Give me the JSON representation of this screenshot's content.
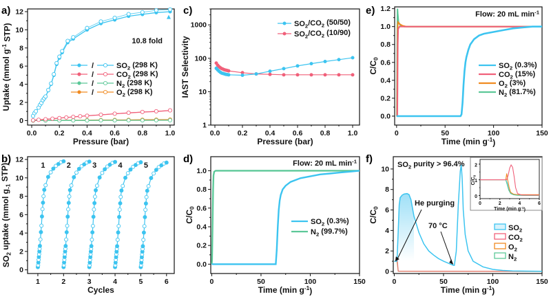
{
  "colors": {
    "so2": "#3cc4f0",
    "co2": "#f0607a",
    "n2": "#5cc898",
    "o2": "#f08a20",
    "axis": "#111111"
  },
  "chart_data": [
    {
      "id": "a",
      "type": "line",
      "panel_label": "a)",
      "xlabel": "Pressure (bar)",
      "ylabel": "Uptake (mmol g-1 STP)",
      "ylabel_parts": [
        "Uptake (mmol g",
        "-1",
        " STP)"
      ],
      "xlim": [
        -0.03,
        1.03
      ],
      "ylim": [
        -0.5,
        12.3
      ],
      "xticks": [
        "0.0",
        "0.2",
        "0.4",
        "0.6",
        "0.8",
        "1.0"
      ],
      "xtick_values": [
        0.0,
        0.2,
        0.4,
        0.6,
        0.8,
        1.0
      ],
      "yticks": [
        "0",
        "2",
        "4",
        "6",
        "8",
        "10",
        "12"
      ],
      "ytick_values": [
        0,
        2,
        4,
        6,
        8,
        10,
        12
      ],
      "annotation": "10.8 fold",
      "legend_position": "center-right",
      "series": [
        {
          "name": "SO2 (298 K)",
          "legend": [
            "SO",
            "2",
            " (298 K)"
          ],
          "color_key": "so2",
          "x": [
            0.01,
            0.02,
            0.03,
            0.05,
            0.06,
            0.07,
            0.08,
            0.09,
            0.1,
            0.12,
            0.14,
            0.16,
            0.18,
            0.2,
            0.22,
            0.26,
            0.3,
            0.4,
            0.5,
            0.6,
            0.7,
            0.8,
            0.9,
            1.0
          ],
          "y": [
            0.5,
            0.8,
            1.0,
            1.4,
            1.7,
            1.9,
            2.2,
            2.4,
            2.6,
            3.3,
            4.0,
            5.0,
            6.2,
            6.9,
            7.5,
            8.6,
            9.0,
            10.0,
            10.7,
            11.1,
            11.5,
            11.7,
            11.9,
            12.0
          ]
        },
        {
          "name": "CO2 (298 K)",
          "legend": [
            "CO",
            "2",
            " (298 K)"
          ],
          "color_key": "co2",
          "x": [
            0.01,
            0.05,
            0.1,
            0.15,
            0.2,
            0.25,
            0.3,
            0.35,
            0.4,
            0.5,
            0.6,
            0.7,
            0.8,
            0.9,
            1.0
          ],
          "y": [
            0.03,
            0.08,
            0.14,
            0.2,
            0.27,
            0.33,
            0.4,
            0.46,
            0.52,
            0.63,
            0.74,
            0.84,
            0.93,
            1.0,
            1.1
          ]
        },
        {
          "name": "N2 (298 K)",
          "legend": [
            "N",
            "2",
            " (298 K)"
          ],
          "color_key": "n2",
          "x": [
            0.01,
            0.1,
            0.2,
            0.3,
            0.4,
            0.5,
            0.6,
            0.7,
            0.8,
            0.9,
            1.0
          ],
          "y": [
            0.0,
            0.0,
            0.01,
            0.01,
            0.01,
            0.02,
            0.02,
            0.02,
            0.02,
            0.03,
            0.03
          ]
        },
        {
          "name": "O2 (298 K)",
          "legend": [
            "O",
            "2",
            " (298 K)"
          ],
          "color_key": "o2",
          "x": [
            0.01,
            0.1,
            0.2,
            0.3,
            0.4,
            0.5,
            0.6,
            0.7,
            0.8,
            0.9,
            1.0
          ],
          "y": [
            0.0,
            0.01,
            0.02,
            0.03,
            0.04,
            0.05,
            0.06,
            0.07,
            0.08,
            0.09,
            0.1
          ]
        }
      ]
    },
    {
      "id": "c",
      "type": "line",
      "panel_label": "c)",
      "xlabel": "Pressure (bar)",
      "ylabel": "IAST Selectivity",
      "yscale": "log",
      "xlim": [
        -0.03,
        1.05
      ],
      "ylim": [
        1,
        3000
      ],
      "xticks": [
        "0.0",
        "0.2",
        "0.4",
        "0.6",
        "0.8",
        "1.0"
      ],
      "xtick_values": [
        0.0,
        0.2,
        0.4,
        0.6,
        0.8,
        1.0
      ],
      "yticks": [
        "1",
        "10",
        "100",
        "1000"
      ],
      "ytick_values": [
        1,
        10,
        100,
        1000
      ],
      "legend_position": "top-right",
      "series": [
        {
          "name": "SO2/CO2 (50/50)",
          "legend": [
            "SO",
            "2",
            "/CO",
            "2",
            " (50/50)"
          ],
          "color_key": "so2",
          "x": [
            0.01,
            0.02,
            0.03,
            0.04,
            0.05,
            0.06,
            0.07,
            0.08,
            0.09,
            0.1,
            0.2,
            0.3,
            0.4,
            0.5,
            0.6,
            0.7,
            0.8,
            0.9,
            1.0
          ],
          "y": [
            50,
            45,
            41,
            38,
            36,
            35,
            34,
            33,
            32.5,
            32,
            31,
            34,
            41,
            49,
            59,
            69,
            80,
            91,
            104
          ]
        },
        {
          "name": "SO2/CO2 (10/90)",
          "legend": [
            "SO",
            "2",
            "/CO",
            "2",
            " (10/90)"
          ],
          "color_key": "co2",
          "x": [
            0.01,
            0.02,
            0.03,
            0.04,
            0.05,
            0.06,
            0.07,
            0.08,
            0.09,
            0.1,
            0.2,
            0.3,
            0.4,
            0.5,
            0.6,
            0.7,
            0.8,
            0.9,
            1.0
          ],
          "y": [
            72,
            62,
            56,
            52,
            49,
            47,
            45,
            44,
            43,
            42,
            37,
            34,
            33,
            32,
            32,
            32,
            32,
            32,
            32
          ]
        }
      ]
    },
    {
      "id": "e",
      "type": "line",
      "panel_label": "e)",
      "xlabel": "Time (min g-1)",
      "ylabel": "C/C0",
      "xlim": [
        -2,
        150
      ],
      "ylim": [
        -0.1,
        1.22
      ],
      "xticks": [
        "0",
        "50",
        "100",
        "150"
      ],
      "xtick_values": [
        0,
        50,
        100,
        150
      ],
      "yticks": [
        "0.0",
        "0.2",
        "0.4",
        "0.6",
        "0.8",
        "1.0",
        "1.2"
      ],
      "ytick_values": [
        0.0,
        0.2,
        0.4,
        0.6,
        0.8,
        1.0,
        1.2
      ],
      "annotation": "Flow: 20 mL min-1",
      "legend_position": "center-right",
      "series": [
        {
          "name": "SO2 (0.3%)",
          "legend": [
            "SO",
            "2",
            " (0.3%)"
          ],
          "color_key": "so2",
          "x": [
            0,
            66,
            67,
            68,
            69,
            70,
            71,
            72,
            74,
            76,
            80,
            85,
            90,
            100,
            110,
            120,
            130,
            140,
            150
          ],
          "y": [
            0,
            0,
            0.02,
            0.15,
            0.35,
            0.5,
            0.6,
            0.66,
            0.74,
            0.8,
            0.86,
            0.9,
            0.92,
            0.94,
            0.96,
            0.98,
            0.99,
            1.0,
            1.0
          ]
        },
        {
          "name": "CO2 (15%)",
          "legend": [
            "CO",
            "2",
            " (15%)"
          ],
          "color_key": "co2",
          "x": [
            0,
            0.8,
            1.0,
            1.3,
            1.6,
            2,
            3,
            5,
            150
          ],
          "y": [
            0,
            0,
            0.3,
            0.8,
            0.97,
            0.98,
            1.0,
            1.0,
            1.0
          ]
        },
        {
          "name": "O2 (3%)",
          "legend": [
            "O",
            "2",
            " (3%)"
          ],
          "color_key": "o2",
          "x": [
            0,
            0.5,
            0.8,
            1.1,
            1.5,
            3,
            6,
            10,
            150
          ],
          "y": [
            0,
            0,
            0.5,
            1.0,
            1.05,
            1.03,
            1.01,
            1.0,
            1.0
          ]
        },
        {
          "name": "N2 (81.7%)",
          "legend": [
            "N",
            "2",
            " (81.7%)"
          ],
          "color_key": "n2",
          "x": [
            0,
            0.3,
            0.6,
            0.9,
            1.2,
            2,
            4,
            8,
            150
          ],
          "y": [
            0,
            0,
            0.8,
            1.2,
            1.15,
            1.05,
            1.01,
            1.0,
            1.0
          ]
        }
      ]
    },
    {
      "id": "b",
      "type": "scatter",
      "panel_label": "b)",
      "xlabel": "Cycles",
      "ylabel": "SO2 uptake (mmol g-1 STP)",
      "xlim": [
        0.6,
        6.3
      ],
      "ylim": [
        -0.4,
        12.3
      ],
      "xticks": [
        "1",
        "2",
        "3",
        "4",
        "5",
        "6"
      ],
      "xtick_values": [
        1,
        2,
        3,
        4,
        5,
        6
      ],
      "yticks": [
        "0",
        "2",
        "4",
        "6",
        "8",
        "10",
        "12"
      ],
      "ytick_values": [
        0,
        2,
        4,
        6,
        8,
        10,
        12
      ],
      "cycle_labels": [
        "1",
        "2",
        "3",
        "4",
        "5"
      ],
      "color_key": "so2",
      "cycle_relative_pressure": [
        0.0,
        0.01,
        0.02,
        0.03,
        0.04,
        0.05,
        0.06,
        0.07,
        0.08,
        0.1,
        0.12,
        0.14,
        0.16,
        0.18,
        0.2,
        0.22,
        0.25,
        0.3,
        0.4,
        0.5,
        0.6,
        0.7,
        0.8,
        0.9,
        1.0
      ],
      "cycle_uptake": [
        0.3,
        0.5,
        0.8,
        1.1,
        1.4,
        1.7,
        2.0,
        2.3,
        2.6,
        3.3,
        4.1,
        4.8,
        5.8,
        6.6,
        7.3,
        8.0,
        8.7,
        9.2,
        10.1,
        10.6,
        11.0,
        11.3,
        11.5,
        11.7,
        11.8
      ]
    },
    {
      "id": "d",
      "type": "line",
      "panel_label": "d)",
      "xlabel": "Time (min g-1)",
      "ylabel": "C/C0",
      "xlim": [
        -1,
        150
      ],
      "ylim": [
        -0.1,
        1.15
      ],
      "xticks": [
        "0",
        "50",
        "100",
        "150"
      ],
      "xtick_values": [
        0,
        50,
        100,
        150
      ],
      "yticks": [
        "0.0",
        "0.2",
        "0.4",
        "0.6",
        "0.8",
        "1.0"
      ],
      "ytick_values": [
        0.0,
        0.2,
        0.4,
        0.6,
        0.8,
        1.0
      ],
      "annotation": "Flow: 20 mL min-1",
      "legend_position": "center-right",
      "series": [
        {
          "name": "SO2 (0.3%)",
          "legend": [
            "SO",
            "2",
            " (0.3%)"
          ],
          "color_key": "so2",
          "x": [
            0,
            65,
            66,
            67,
            68,
            69,
            70,
            72,
            75,
            80,
            85,
            90,
            100,
            110,
            120,
            130,
            140,
            150
          ],
          "y": [
            0,
            0,
            0.15,
            0.4,
            0.58,
            0.68,
            0.74,
            0.8,
            0.84,
            0.88,
            0.9,
            0.92,
            0.94,
            0.96,
            0.97,
            0.98,
            0.99,
            1.0
          ]
        },
        {
          "name": "N2 (99.7%)",
          "legend": [
            "N",
            "2",
            " (99.7%)"
          ],
          "color_key": "n2",
          "x": [
            0,
            0.3,
            0.6,
            1.0,
            1.4,
            1.8,
            2.5,
            4,
            150
          ],
          "y": [
            0,
            0.05,
            0.25,
            0.55,
            0.8,
            0.95,
            0.99,
            1.0,
            1.0
          ]
        }
      ]
    },
    {
      "id": "f",
      "type": "area",
      "panel_label": "f)",
      "xlabel": "Time (min g-1)",
      "ylabel": "C/C0",
      "xlim": [
        -1,
        150
      ],
      "ylim": [
        -0.2,
        11.2
      ],
      "xticks": [
        "0",
        "50",
        "100",
        "150"
      ],
      "xtick_values": [
        0,
        50,
        100,
        150
      ],
      "yticks": [
        "0",
        "2",
        "4",
        "6",
        "8",
        "10"
      ],
      "ytick_values": [
        0,
        2,
        4,
        6,
        8,
        10
      ],
      "annotations": [
        "SO2 purity > 96.4%",
        "He purging",
        "70 °C"
      ],
      "legend_position": "bottom-right",
      "series": [
        {
          "name": "SO2",
          "color_key": "so2",
          "x": [
            0,
            2.5,
            3,
            4,
            5,
            6,
            8,
            10,
            13,
            15,
            17,
            20,
            25,
            30,
            35,
            40,
            45,
            50,
            55,
            60,
            61,
            63,
            65,
            67,
            68,
            69,
            70,
            72,
            75,
            80,
            90,
            100,
            110,
            120,
            150
          ],
          "y": [
            1,
            1,
            1.5,
            4,
            6.5,
            7.2,
            7.45,
            7.55,
            7.6,
            7.5,
            7.0,
            5.4,
            3.8,
            2.7,
            2.0,
            1.6,
            1.25,
            1.0,
            0.8,
            0.6,
            0.6,
            2.0,
            6.5,
            9.8,
            10.4,
            9.0,
            6.0,
            3.6,
            2.0,
            1.0,
            0.45,
            0.2,
            0.1,
            0.05,
            0.02
          ]
        },
        {
          "name": "CO2",
          "color_key": "co2",
          "x": [
            0,
            2.5,
            3,
            4,
            150
          ],
          "y": [
            1,
            1,
            1.3,
            0.02,
            0.01
          ]
        },
        {
          "name": "O2",
          "color_key": "o2",
          "x": [
            0,
            2.5,
            3,
            4,
            150
          ],
          "y": [
            1,
            1,
            0.9,
            0.02,
            0.0
          ]
        },
        {
          "name": "N2",
          "color_key": "n2",
          "x": [
            0,
            2.5,
            3,
            4,
            150
          ],
          "y": [
            1,
            1,
            0.8,
            0.02,
            0.0
          ]
        }
      ],
      "inset": {
        "xlabel": "Time (min g-1)",
        "ylabel": "C/C0",
        "xlim": [
          0,
          6
        ],
        "ylim": [
          -0.2,
          2.3
        ],
        "xticks": [
          "0",
          "2",
          "4",
          "6"
        ],
        "xtick_values": [
          0,
          2,
          4,
          6
        ],
        "yticks": [
          "0",
          "1",
          "2"
        ],
        "ytick_values": [
          0,
          1,
          2
        ],
        "series": [
          {
            "name": "SO2",
            "color_key": "so2",
            "x": [
              0,
              2.6,
              2.75,
              2.9,
              3.1,
              3.4,
              3.8,
              4.5,
              6
            ],
            "y": [
              1,
              1,
              0.8,
              0.4,
              0.15,
              0.05,
              0.02,
              0.01,
              0.01
            ]
          },
          {
            "name": "O2",
            "color_key": "o2",
            "x": [
              0,
              2.6,
              2.7,
              2.8,
              2.95,
              3.1,
              3.4,
              3.8,
              4.5,
              6
            ],
            "y": [
              1,
              1,
              1.4,
              1.0,
              0.5,
              0.2,
              0.08,
              0.05,
              0.05,
              0.05
            ]
          },
          {
            "name": "N2",
            "color_key": "n2",
            "x": [
              0,
              2.6,
              2.75,
              2.9,
              3.1,
              3.4,
              3.8,
              4.5,
              6
            ],
            "y": [
              1,
              1,
              0.7,
              0.35,
              0.12,
              0.04,
              0.01,
              0.0,
              0.0
            ]
          },
          {
            "name": "CO2",
            "color_key": "co2",
            "x": [
              0,
              2.7,
              2.85,
              3.0,
              3.15,
              3.3,
              3.45,
              3.6,
              3.8,
              4.2,
              6
            ],
            "y": [
              1,
              1,
              1.3,
              1.75,
              1.95,
              1.8,
              1.2,
              0.5,
              0.12,
              0.03,
              0.02
            ]
          }
        ]
      }
    }
  ]
}
